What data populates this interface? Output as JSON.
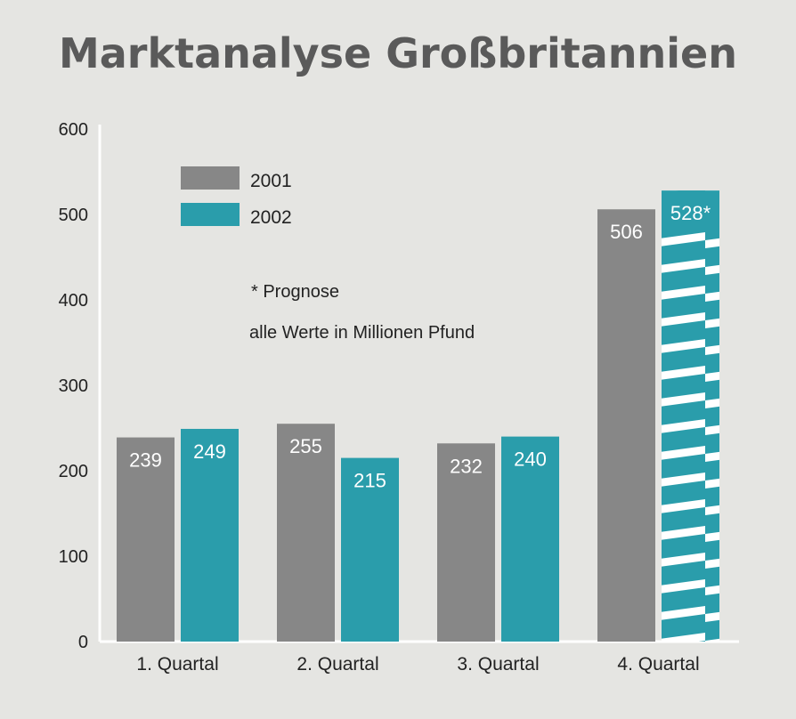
{
  "chart_data": {
    "type": "bar",
    "title": "Marktanalyse Großbritannien",
    "categories": [
      "1. Quartal",
      "2. Quartal",
      "3. Quartal",
      "4. Quartal"
    ],
    "series": [
      {
        "name": "2001",
        "values": [
          239,
          255,
          232,
          506
        ],
        "labels": [
          "239",
          "255",
          "232",
          "506"
        ],
        "color": "#878787"
      },
      {
        "name": "2002",
        "values": [
          249,
          215,
          240,
          528
        ],
        "labels": [
          "249",
          "215",
          "240",
          "528*"
        ],
        "color": "#2a9dab",
        "striped_categories": [
          3
        ]
      }
    ],
    "yticks": [
      "0",
      "100",
      "200",
      "300",
      "400",
      "500",
      "600"
    ],
    "ylim": [
      0,
      600
    ],
    "grid": false,
    "legend_position": "top-left",
    "notes": [
      "* Prognose",
      "alle Werte in Millionen Pfund"
    ]
  }
}
